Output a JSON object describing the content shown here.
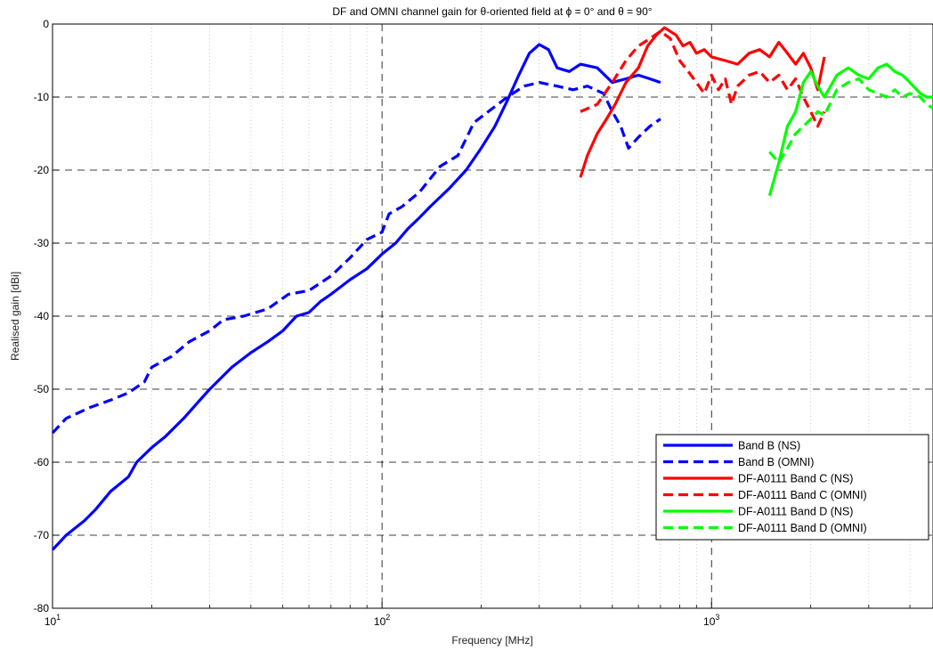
{
  "chart_data": {
    "type": "line",
    "title": "DF and OMNI channel gain for θ-oriented field at ϕ = 0° and θ = 90°",
    "xlabel": "Frequency [MHz]",
    "ylabel": "Realised gain [dBi]",
    "xscale": "log",
    "xlim": [
      10,
      4700
    ],
    "ylim": [
      -80,
      0
    ],
    "x_ticks": [
      10,
      100,
      1000
    ],
    "x_tick_labels": [
      {
        "base": "10",
        "exp": "1"
      },
      {
        "base": "10",
        "exp": "2"
      },
      {
        "base": "10",
        "exp": "3"
      }
    ],
    "y_ticks": [
      0,
      -10,
      -20,
      -30,
      -40,
      -50,
      -60,
      -70,
      -80
    ],
    "y_tick_labels": [
      "0",
      "-10",
      "-20",
      "-30",
      "-40",
      "-50",
      "-60",
      "-70",
      "-80"
    ],
    "grid": true,
    "legend_position": "bottom-right",
    "series": [
      {
        "name": "Band B (NS)",
        "color": "#0000ff",
        "dash": "solid",
        "points": [
          [
            10,
            -72
          ],
          [
            11,
            -70
          ],
          [
            12.5,
            -68
          ],
          [
            13.5,
            -66.5
          ],
          [
            15,
            -64
          ],
          [
            17,
            -62
          ],
          [
            18,
            -60
          ],
          [
            20,
            -58
          ],
          [
            22,
            -56.5
          ],
          [
            25,
            -54
          ],
          [
            28,
            -51.5
          ],
          [
            30,
            -50
          ],
          [
            35,
            -47
          ],
          [
            40,
            -45
          ],
          [
            45,
            -43.5
          ],
          [
            50,
            -42
          ],
          [
            55,
            -40
          ],
          [
            60,
            -39.5
          ],
          [
            65,
            -38
          ],
          [
            70,
            -37
          ],
          [
            80,
            -35
          ],
          [
            90,
            -33.5
          ],
          [
            100,
            -31.5
          ],
          [
            110,
            -30
          ],
          [
            120,
            -28
          ],
          [
            130,
            -26.5
          ],
          [
            140,
            -25
          ],
          [
            160,
            -22.5
          ],
          [
            180,
            -20
          ],
          [
            200,
            -17
          ],
          [
            220,
            -14
          ],
          [
            240,
            -10.5
          ],
          [
            260,
            -7
          ],
          [
            280,
            -4
          ],
          [
            300,
            -2.8
          ],
          [
            320,
            -3.5
          ],
          [
            340,
            -6
          ],
          [
            370,
            -6.5
          ],
          [
            400,
            -5.5
          ],
          [
            450,
            -6
          ],
          [
            500,
            -8
          ],
          [
            550,
            -7.5
          ],
          [
            600,
            -7
          ],
          [
            650,
            -7.5
          ],
          [
            700,
            -8
          ]
        ]
      },
      {
        "name": "Band B (OMNI)",
        "color": "#0000ff",
        "dash": "dashed",
        "points": [
          [
            10,
            -56
          ],
          [
            11,
            -54
          ],
          [
            13,
            -52.5
          ],
          [
            15,
            -51.5
          ],
          [
            17,
            -50.5
          ],
          [
            19,
            -49
          ],
          [
            20,
            -47
          ],
          [
            23,
            -45.5
          ],
          [
            26,
            -43.5
          ],
          [
            30,
            -42
          ],
          [
            33,
            -40.5
          ],
          [
            38,
            -40
          ],
          [
            45,
            -39
          ],
          [
            52,
            -37
          ],
          [
            60,
            -36.5
          ],
          [
            70,
            -34.5
          ],
          [
            80,
            -32
          ],
          [
            90,
            -29.5
          ],
          [
            100,
            -28.5
          ],
          [
            105,
            -26
          ],
          [
            115,
            -25
          ],
          [
            130,
            -23
          ],
          [
            150,
            -19.5
          ],
          [
            170,
            -18
          ],
          [
            190,
            -13.5
          ],
          [
            210,
            -12
          ],
          [
            240,
            -10
          ],
          [
            270,
            -8.5
          ],
          [
            300,
            -8
          ],
          [
            340,
            -8.5
          ],
          [
            380,
            -9
          ],
          [
            420,
            -8.5
          ],
          [
            470,
            -9.5
          ],
          [
            500,
            -12
          ],
          [
            530,
            -14
          ],
          [
            560,
            -17
          ],
          [
            600,
            -15.5
          ],
          [
            650,
            -14
          ],
          [
            700,
            -13
          ]
        ]
      },
      {
        "name": "DF-A0111 Band C (NS)",
        "color": "#ff0000",
        "dash": "solid",
        "points": [
          [
            400,
            -21
          ],
          [
            420,
            -18
          ],
          [
            450,
            -15
          ],
          [
            480,
            -13
          ],
          [
            510,
            -11
          ],
          [
            550,
            -8
          ],
          [
            600,
            -6
          ],
          [
            640,
            -3
          ],
          [
            680,
            -1.5
          ],
          [
            720,
            -0.5
          ],
          [
            780,
            -1.5
          ],
          [
            820,
            -3
          ],
          [
            860,
            -2.5
          ],
          [
            900,
            -4
          ],
          [
            950,
            -3.5
          ],
          [
            1000,
            -4.5
          ],
          [
            1100,
            -5
          ],
          [
            1200,
            -5.5
          ],
          [
            1300,
            -4
          ],
          [
            1400,
            -3.5
          ],
          [
            1500,
            -4.5
          ],
          [
            1600,
            -2.5
          ],
          [
            1700,
            -4
          ],
          [
            1800,
            -5.5
          ],
          [
            1900,
            -4
          ],
          [
            2000,
            -6
          ],
          [
            2100,
            -9
          ],
          [
            2200,
            -4.5
          ]
        ]
      },
      {
        "name": "DF-A0111 Band C (OMNI)",
        "color": "#ff0000",
        "dash": "dashed",
        "points": [
          [
            400,
            -12
          ],
          [
            450,
            -11
          ],
          [
            500,
            -8
          ],
          [
            550,
            -5
          ],
          [
            600,
            -3
          ],
          [
            650,
            -2
          ],
          [
            700,
            -1
          ],
          [
            750,
            -2
          ],
          [
            800,
            -5
          ],
          [
            850,
            -6.5
          ],
          [
            900,
            -8
          ],
          [
            950,
            -9.5
          ],
          [
            1000,
            -7
          ],
          [
            1050,
            -9
          ],
          [
            1100,
            -7.5
          ],
          [
            1150,
            -11
          ],
          [
            1200,
            -8.5
          ],
          [
            1300,
            -7
          ],
          [
            1400,
            -6.5
          ],
          [
            1500,
            -8
          ],
          [
            1600,
            -7
          ],
          [
            1700,
            -9
          ],
          [
            1800,
            -7.5
          ],
          [
            1900,
            -10
          ],
          [
            2000,
            -12
          ],
          [
            2100,
            -14
          ],
          [
            2200,
            -12
          ]
        ]
      },
      {
        "name": "DF-A0111 Band D (NS)",
        "color": "#00ff00",
        "dash": "solid",
        "points": [
          [
            1500,
            -23.5
          ],
          [
            1600,
            -19
          ],
          [
            1700,
            -14
          ],
          [
            1800,
            -12
          ],
          [
            1900,
            -8
          ],
          [
            2000,
            -6.5
          ],
          [
            2100,
            -8.5
          ],
          [
            2200,
            -10
          ],
          [
            2400,
            -7
          ],
          [
            2600,
            -6
          ],
          [
            2800,
            -7
          ],
          [
            3000,
            -7.5
          ],
          [
            3200,
            -6
          ],
          [
            3400,
            -5.5
          ],
          [
            3600,
            -6.5
          ],
          [
            3800,
            -7
          ],
          [
            4000,
            -8
          ],
          [
            4300,
            -9.5
          ],
          [
            4500,
            -10
          ],
          [
            4700,
            -10
          ]
        ]
      },
      {
        "name": "DF-A0111 Band D (OMNI)",
        "color": "#00ff00",
        "dash": "dashed",
        "points": [
          [
            1500,
            -17.5
          ],
          [
            1600,
            -19
          ],
          [
            1700,
            -17
          ],
          [
            1800,
            -15
          ],
          [
            1900,
            -14
          ],
          [
            2000,
            -13
          ],
          [
            2100,
            -12
          ],
          [
            2200,
            -12.5
          ],
          [
            2400,
            -9
          ],
          [
            2600,
            -8
          ],
          [
            2800,
            -7.5
          ],
          [
            3000,
            -9
          ],
          [
            3200,
            -9.5
          ],
          [
            3400,
            -10
          ],
          [
            3600,
            -9
          ],
          [
            3800,
            -10
          ],
          [
            4000,
            -9.5
          ],
          [
            4300,
            -10
          ],
          [
            4500,
            -11
          ],
          [
            4700,
            -11.5
          ]
        ]
      }
    ]
  }
}
